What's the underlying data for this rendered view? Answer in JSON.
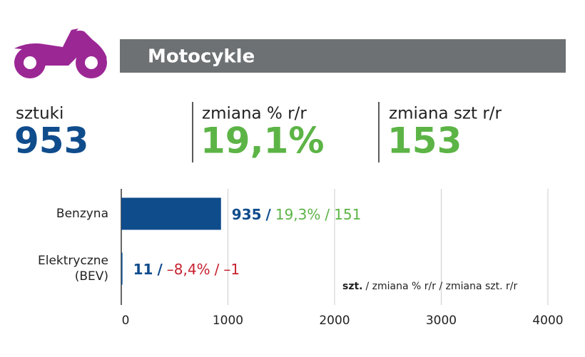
{
  "header": {
    "title": "Motocykle"
  },
  "stats": [
    {
      "label": "sztuki",
      "value": "953",
      "color": "#0f4c8c"
    },
    {
      "label": "zmiana % r/r",
      "value": "19,1%",
      "color": "#5cb446"
    },
    {
      "label": "zmiana szt r/r",
      "value": "153",
      "color": "#5cb446"
    }
  ],
  "chart_data": {
    "type": "barh",
    "categories": [
      "Benzyna",
      "Elektryczne (BEV)"
    ],
    "values": [
      935,
      11
    ],
    "color": "#0f4c8c",
    "change_pct": [
      19.3,
      -8.4
    ],
    "change_pct_labels": [
      "19,3%",
      "–8,4%"
    ],
    "change_units": [
      151,
      -1
    ],
    "change_units_labels": [
      "151",
      "–1"
    ],
    "positive_color": "#5cb446",
    "negative_color": "#c8202f",
    "separator": "/",
    "xlim": [
      0,
      4000
    ],
    "xticks": [
      0,
      1000,
      2000,
      3000,
      4000
    ],
    "grid": true,
    "note_bold": "szt.",
    "note_rest": "/ zmiana % r/r / zmiana szt. r/r"
  }
}
